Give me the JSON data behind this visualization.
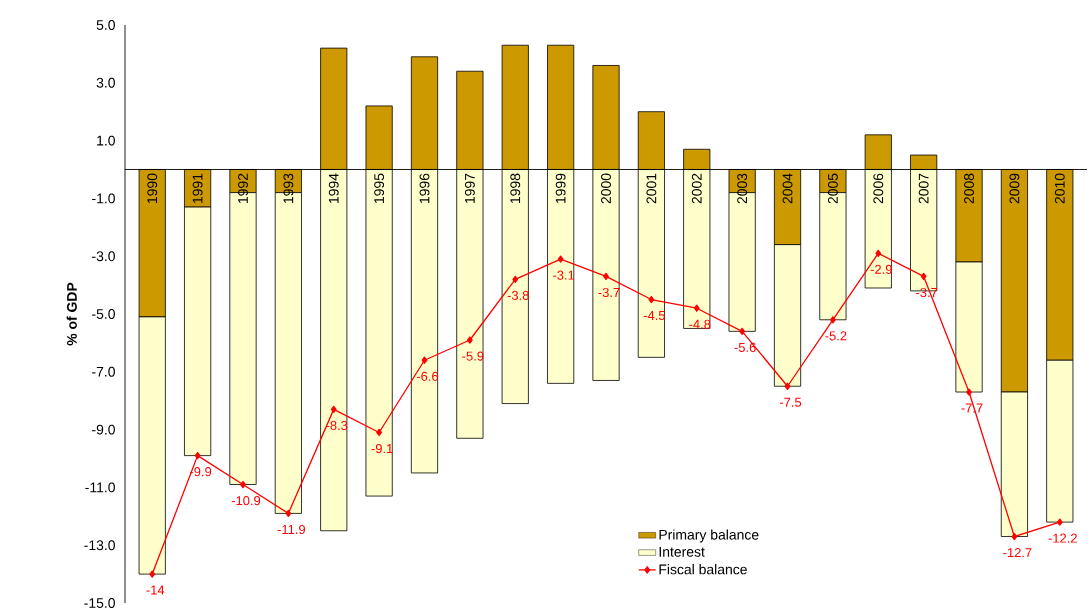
{
  "chart_data": {
    "type": "bar",
    "stacked": true,
    "ylabel": "% of GDP",
    "categories": [
      "1990",
      "1991",
      "1992",
      "1993",
      "1994",
      "1995",
      "1996",
      "1997",
      "1998",
      "1999",
      "2000",
      "2001",
      "2002",
      "2003",
      "2004",
      "2005",
      "2006",
      "2007",
      "2008",
      "2009",
      "2010"
    ],
    "series": [
      {
        "name": "Primary balance",
        "color": "#cc9900",
        "values": [
          -5.1,
          -1.3,
          -0.8,
          -0.8,
          4.2,
          2.2,
          3.9,
          3.4,
          4.3,
          4.3,
          3.6,
          2.0,
          0.7,
          -0.8,
          -2.6,
          -0.8,
          1.2,
          0.5,
          -3.2,
          -7.7,
          -6.6
        ]
      },
      {
        "name": "Interest",
        "color": "#ffffcc",
        "values": [
          -8.9,
          -8.6,
          -10.1,
          -11.1,
          -12.5,
          -11.3,
          -10.5,
          -9.3,
          -8.1,
          -7.4,
          -7.3,
          -6.5,
          -5.5,
          -4.8,
          -4.9,
          -4.4,
          -4.1,
          -4.2,
          -4.5,
          -5.0,
          -5.6
        ]
      },
      {
        "name": "Fiscal balance",
        "type": "line",
        "color": "#ff0000",
        "marker": "diamond",
        "values": [
          -14,
          -9.9,
          -10.9,
          -11.9,
          -8.3,
          -9.1,
          -6.6,
          -5.9,
          -3.8,
          -3.1,
          -3.7,
          -4.5,
          -4.8,
          -5.6,
          -7.5,
          -5.2,
          -2.9,
          -3.7,
          -7.7,
          -12.7,
          -12.2
        ],
        "value_labels": [
          "-14",
          "-9.9",
          "-10.9",
          "-11.9",
          "-8.3",
          "-9.1",
          "-6.6",
          "-5.9",
          "-3.8",
          "-3.1",
          "-3.7",
          "-4.5",
          "-4.8",
          "-5.6",
          "-7.5",
          "-5.2",
          "-2.9",
          "-3.7",
          "-7.7",
          "-12.7",
          "-12.2"
        ]
      }
    ],
    "ylim": [
      -15,
      5
    ],
    "yticks": [
      {
        "value": -15,
        "label": "-15.0"
      },
      {
        "value": -13,
        "label": "-13.0"
      },
      {
        "value": -11,
        "label": "-11.0"
      },
      {
        "value": -9,
        "label": "-9.0"
      },
      {
        "value": -7,
        "label": "-7.0"
      },
      {
        "value": -5,
        "label": "-5.0"
      },
      {
        "value": -3,
        "label": "-3.0"
      },
      {
        "value": -1,
        "label": "-1.0"
      },
      {
        "value": 1,
        "label": "1.0"
      },
      {
        "value": 3,
        "label": "3.0"
      },
      {
        "value": 5,
        "label": "5.0"
      }
    ],
    "grid": false,
    "legend": "bottom"
  }
}
